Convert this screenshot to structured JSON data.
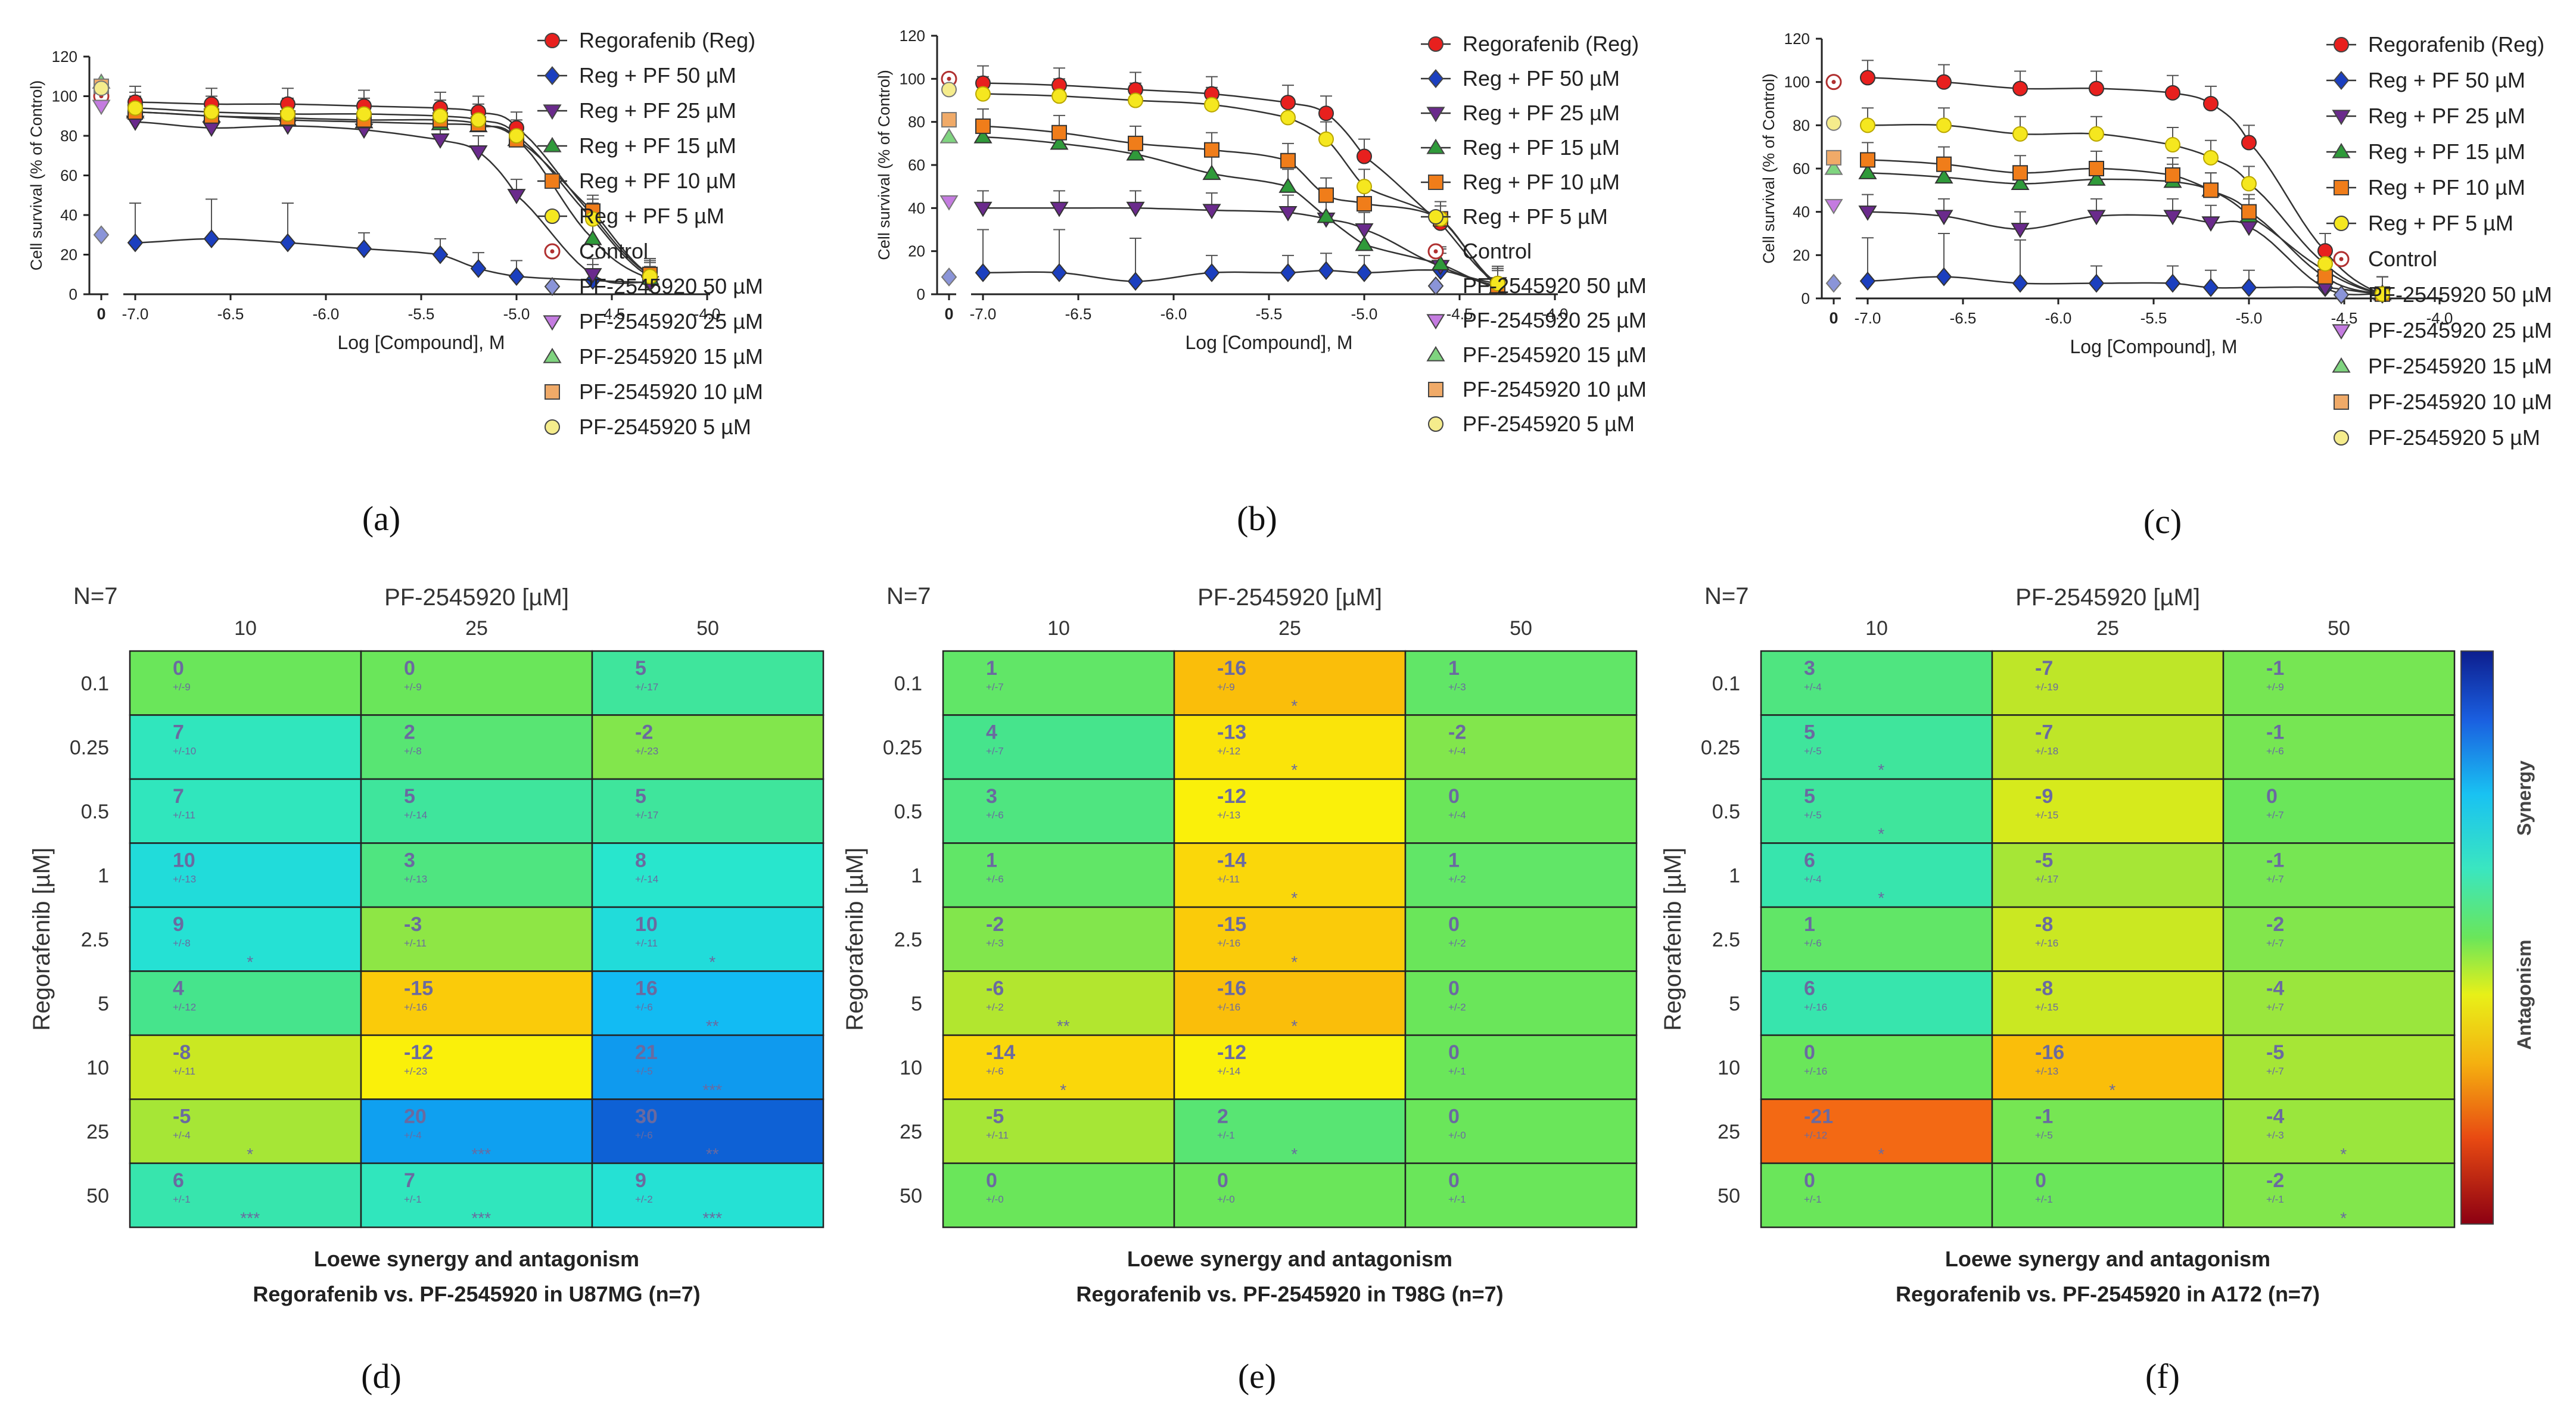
{
  "panel_labels": [
    "(a)",
    "(b)",
    "(c)",
    "(d)",
    "(e)",
    "(f)"
  ],
  "legend_entries": [
    "Regorafenib (Reg)",
    "Reg + PF 50 µM",
    "Reg + PF 25 µM",
    "Reg + PF 15 µM",
    "Reg + PF 10 µM",
    "Reg + PF 5 µM",
    "Control",
    "PF-2545920 50 µM",
    "PF-2545920 25 µM",
    "PF-2545920 15 µM",
    "PF-2545920 10 µM",
    "PF-2545920 5 µM"
  ],
  "series_colors": [
    "#e8201e",
    "#1b3fbf",
    "#6a2a8c",
    "#2f9a3a",
    "#f07d1a",
    "#f5e71f",
    "#c83a3a",
    "#8a94d8",
    "#c47be0",
    "#7fd47f",
    "#f0aa68",
    "#f5ec8c"
  ],
  "colorbar": {
    "synergy_label": "Synergy",
    "antagonism_label": "Antagonism"
  },
  "chart_data": [
    {
      "panel": "(a)",
      "type": "line",
      "title": "",
      "xlabel": "Log [Compound], M",
      "ylabel": "Cell survival (% of Control)",
      "xlim": [
        -7.3,
        -4.0
      ],
      "ylim": [
        0,
        120
      ],
      "xticks": [
        "0",
        "-7.0",
        "-6.5",
        "-6.0",
        "-5.5",
        "-5.0",
        "-4.5",
        "-4.0"
      ],
      "yticks": [
        "0",
        "20",
        "40",
        "60",
        "80",
        "100",
        "120"
      ],
      "x": [
        -7.0,
        -6.6,
        -6.2,
        -5.8,
        -5.4,
        -5.2,
        -5.0,
        -4.6,
        -4.3
      ],
      "series": [
        {
          "name": "Regorafenib (Reg)",
          "values": [
            97,
            96,
            96,
            95,
            94,
            92,
            84,
            40,
            10
          ]
        },
        {
          "name": "Reg + PF 50 µM",
          "values": [
            26,
            28,
            26,
            23,
            20,
            13,
            9,
            7,
            6
          ]
        },
        {
          "name": "Reg + PF 25 µM",
          "values": [
            87,
            84,
            85,
            83,
            78,
            72,
            50,
            10,
            6
          ]
        },
        {
          "name": "Reg + PF 15 µM",
          "values": [
            92,
            90,
            88,
            87,
            86,
            85,
            78,
            28,
            8
          ]
        },
        {
          "name": "Reg + PF 10 µM",
          "values": [
            92,
            90,
            89,
            88,
            88,
            86,
            78,
            42,
            10
          ]
        },
        {
          "name": "Reg + PF 5 µM",
          "values": [
            94,
            92,
            91,
            91,
            90,
            88,
            80,
            38,
            9
          ]
        }
      ],
      "controls": [
        {
          "name": "Control",
          "value": 100
        },
        {
          "name": "PF-2545920 50 µM",
          "value": 30
        },
        {
          "name": "PF-2545920 25 µM",
          "value": 95
        },
        {
          "name": "PF-2545920 15 µM",
          "value": 107
        },
        {
          "name": "PF-2545920 10 µM",
          "value": 105
        },
        {
          "name": "PF-2545920 5 µM",
          "value": 104
        }
      ]
    },
    {
      "panel": "(b)",
      "type": "line",
      "title": "",
      "xlabel": "Log [Compound], M",
      "ylabel": "Cell survival (% of Control)",
      "xlim": [
        -7.3,
        -4.0
      ],
      "ylim": [
        0,
        120
      ],
      "xticks": [
        "0",
        "-7.0",
        "-6.5",
        "-6.0",
        "-5.5",
        "-5.0",
        "-4.5",
        "-4.0"
      ],
      "yticks": [
        "0",
        "20",
        "40",
        "60",
        "80",
        "100",
        "120"
      ],
      "x": [
        -7.0,
        -6.6,
        -6.2,
        -5.8,
        -5.4,
        -5.2,
        -5.0,
        -4.6,
        -4.3
      ],
      "series": [
        {
          "name": "Regorafenib (Reg)",
          "values": [
            98,
            97,
            95,
            93,
            89,
            84,
            64,
            33,
            5
          ]
        },
        {
          "name": "Reg + PF 50 µM",
          "values": [
            10,
            10,
            6,
            10,
            10,
            11,
            10,
            11,
            4
          ]
        },
        {
          "name": "Reg + PF 25 µM",
          "values": [
            40,
            40,
            40,
            39,
            38,
            35,
            30,
            13,
            5
          ]
        },
        {
          "name": "Reg + PF 15 µM",
          "values": [
            73,
            70,
            65,
            56,
            50,
            36,
            23,
            14,
            3
          ]
        },
        {
          "name": "Reg + PF 10 µM",
          "values": [
            78,
            75,
            70,
            67,
            62,
            46,
            42,
            35,
            4
          ]
        },
        {
          "name": "Reg + PF 5 µM",
          "values": [
            93,
            92,
            90,
            88,
            82,
            72,
            50,
            35,
            5
          ]
        }
      ],
      "controls": [
        {
          "name": "Control",
          "value": 100
        },
        {
          "name": "PF-2545920 50 µM",
          "value": 8
        },
        {
          "name": "PF-2545920 25 µM",
          "value": 43
        },
        {
          "name": "PF-2545920 15 µM",
          "value": 73
        },
        {
          "name": "PF-2545920 10 µM",
          "value": 81
        },
        {
          "name": "PF-2545920 5 µM",
          "value": 95
        }
      ]
    },
    {
      "panel": "(c)",
      "type": "line",
      "title": "",
      "xlabel": "Log [Compound], M",
      "ylabel": "Cell survival (% of Control)",
      "xlim": [
        -7.3,
        -4.0
      ],
      "ylim": [
        0,
        120
      ],
      "xticks": [
        "0",
        "-7.0",
        "-6.5",
        "-6.0",
        "-5.5",
        "-5.0",
        "-4.5",
        "-4.0"
      ],
      "yticks": [
        "0",
        "20",
        "40",
        "60",
        "80",
        "100",
        "120"
      ],
      "x": [
        -7.0,
        -6.6,
        -6.2,
        -5.8,
        -5.4,
        -5.2,
        -5.0,
        -4.6,
        -4.3
      ],
      "series": [
        {
          "name": "Regorafenib (Reg)",
          "values": [
            102,
            100,
            97,
            97,
            95,
            90,
            72,
            22,
            2
          ]
        },
        {
          "name": "Reg + PF 50 µM",
          "values": [
            8,
            10,
            7,
            7,
            7,
            5,
            5,
            5,
            2
          ]
        },
        {
          "name": "Reg + PF 25 µM",
          "values": [
            40,
            38,
            32,
            38,
            38,
            35,
            33,
            5,
            2
          ]
        },
        {
          "name": "Reg + PF 15 µM",
          "values": [
            58,
            56,
            53,
            55,
            54,
            50,
            38,
            13,
            2
          ]
        },
        {
          "name": "Reg + PF 10 µM",
          "values": [
            64,
            62,
            58,
            60,
            57,
            50,
            40,
            10,
            2
          ]
        },
        {
          "name": "Reg + PF 5 µM",
          "values": [
            80,
            80,
            76,
            76,
            71,
            65,
            53,
            16,
            2
          ]
        }
      ],
      "controls": [
        {
          "name": "Control",
          "value": 100
        },
        {
          "name": "PF-2545920 50 µM",
          "value": 7
        },
        {
          "name": "PF-2545920 25 µM",
          "value": 43
        },
        {
          "name": "PF-2545920 15 µM",
          "value": 60
        },
        {
          "name": "PF-2545920 10 µM",
          "value": 65
        },
        {
          "name": "PF-2545920 5 µM",
          "value": 81
        }
      ]
    },
    {
      "panel": "(d)",
      "type": "heatmap",
      "n_label": "N=7",
      "top_label": "PF-2545920 [µM]",
      "left_label": "Regorafenib [µM]",
      "title": "Loewe synergy and antagonism",
      "subtitle": "Regorafenib vs. PF-2545920 in U87MG (n=7)",
      "columns": [
        "10",
        "25",
        "50"
      ],
      "rows": [
        "0.1",
        "0.25",
        "0.5",
        "1",
        "2.5",
        "5",
        "10",
        "25",
        "50"
      ],
      "values": [
        [
          0,
          0,
          5
        ],
        [
          7,
          2,
          -2
        ],
        [
          7,
          5,
          5
        ],
        [
          10,
          3,
          8
        ],
        [
          9,
          -3,
          10
        ],
        [
          4,
          -15,
          16
        ],
        [
          -8,
          -12,
          21
        ],
        [
          -5,
          20,
          30
        ],
        [
          6,
          7,
          9
        ]
      ],
      "sd": [
        [
          "+/-9",
          "+/-9",
          "+/-17"
        ],
        [
          "+/-10",
          "+/-8",
          "+/-23"
        ],
        [
          "+/-11",
          "+/-14",
          "+/-17"
        ],
        [
          "+/-13",
          "+/-13",
          "+/-14"
        ],
        [
          "+/-8",
          "+/-11",
          "+/-11"
        ],
        [
          "+/-12",
          "+/-16",
          "+/-6"
        ],
        [
          "+/-11",
          "+/-23",
          "+/-5"
        ],
        [
          "+/-4",
          "+/-4",
          "+/-6"
        ],
        [
          "+/-1",
          "+/-1",
          "+/-2"
        ]
      ],
      "stars": [
        [
          "",
          "",
          ""
        ],
        [
          "",
          "",
          ""
        ],
        [
          "",
          "",
          ""
        ],
        [
          "",
          "",
          ""
        ],
        [
          "*",
          "",
          "*"
        ],
        [
          "",
          "",
          "**"
        ],
        [
          "",
          "",
          "***"
        ],
        [
          "*",
          "***",
          "**"
        ],
        [
          "***",
          "***",
          "***"
        ]
      ]
    },
    {
      "panel": "(e)",
      "type": "heatmap",
      "n_label": "N=7",
      "top_label": "PF-2545920 [µM]",
      "left_label": "Regorafenib [µM]",
      "title": "Loewe synergy and antagonism",
      "subtitle": "Regorafenib vs. PF-2545920 in T98G (n=7)",
      "columns": [
        "10",
        "25",
        "50"
      ],
      "rows": [
        "0.1",
        "0.25",
        "0.5",
        "1",
        "2.5",
        "5",
        "10",
        "25",
        "50"
      ],
      "values": [
        [
          1,
          -16,
          1
        ],
        [
          4,
          -13,
          -2
        ],
        [
          3,
          -12,
          0
        ],
        [
          1,
          -14,
          1
        ],
        [
          -2,
          -15,
          0
        ],
        [
          -6,
          -16,
          0
        ],
        [
          -14,
          -12,
          0
        ],
        [
          -5,
          2,
          0
        ],
        [
          0,
          0,
          0
        ]
      ],
      "sd": [
        [
          "+/-7",
          "+/-9",
          "+/-3"
        ],
        [
          "+/-7",
          "+/-12",
          "+/-4"
        ],
        [
          "+/-6",
          "+/-13",
          "+/-4"
        ],
        [
          "+/-6",
          "+/-11",
          "+/-2"
        ],
        [
          "+/-3",
          "+/-16",
          "+/-2"
        ],
        [
          "+/-2",
          "+/-16",
          "+/-2"
        ],
        [
          "+/-6",
          "+/-14",
          "+/-1"
        ],
        [
          "+/-11",
          "+/-1",
          "+/-0"
        ],
        [
          "+/-0",
          "+/-0",
          "+/-1"
        ]
      ],
      "stars": [
        [
          "",
          "*",
          ""
        ],
        [
          "",
          "*",
          ""
        ],
        [
          "",
          "",
          ""
        ],
        [
          "",
          "*",
          ""
        ],
        [
          "",
          "*",
          ""
        ],
        [
          "**",
          "*",
          ""
        ],
        [
          "*",
          "",
          ""
        ],
        [
          "",
          "*",
          ""
        ],
        [
          "",
          "",
          ""
        ]
      ]
    },
    {
      "panel": "(f)",
      "type": "heatmap",
      "n_label": "N=7",
      "top_label": "PF-2545920 [µM]",
      "left_label": "Regorafenib [µM]",
      "title": "Loewe synergy and antagonism",
      "subtitle": "Regorafenib vs. PF-2545920 in A172 (n=7)",
      "columns": [
        "10",
        "25",
        "50"
      ],
      "rows": [
        "0.1",
        "0.25",
        "0.5",
        "1",
        "2.5",
        "5",
        "10",
        "25",
        "50"
      ],
      "values": [
        [
          3,
          -7,
          -1
        ],
        [
          5,
          -7,
          -1
        ],
        [
          5,
          -9,
          0
        ],
        [
          6,
          -5,
          -1
        ],
        [
          1,
          -8,
          -2
        ],
        [
          6,
          -8,
          -4
        ],
        [
          0,
          -16,
          -5
        ],
        [
          -21,
          -1,
          -4
        ],
        [
          0,
          0,
          -2
        ]
      ],
      "sd": [
        [
          "+/-4",
          "+/-19",
          "+/-9"
        ],
        [
          "+/-5",
          "+/-18",
          "+/-6"
        ],
        [
          "+/-5",
          "+/-15",
          "+/-7"
        ],
        [
          "+/-4",
          "+/-17",
          "+/-7"
        ],
        [
          "+/-6",
          "+/-16",
          "+/-7"
        ],
        [
          "+/-16",
          "+/-15",
          "+/-7"
        ],
        [
          "+/-16",
          "+/-13",
          "+/-7"
        ],
        [
          "+/-12",
          "+/-5",
          "+/-3"
        ],
        [
          "+/-1",
          "+/-1",
          "+/-1"
        ]
      ],
      "stars": [
        [
          "",
          "",
          ""
        ],
        [
          "*",
          "",
          ""
        ],
        [
          "*",
          "",
          ""
        ],
        [
          "*",
          "",
          ""
        ],
        [
          "",
          "",
          ""
        ],
        [
          "",
          "",
          ""
        ],
        [
          "",
          "*",
          ""
        ],
        [
          "*",
          "",
          "*"
        ],
        [
          "",
          "",
          "*"
        ]
      ]
    }
  ]
}
